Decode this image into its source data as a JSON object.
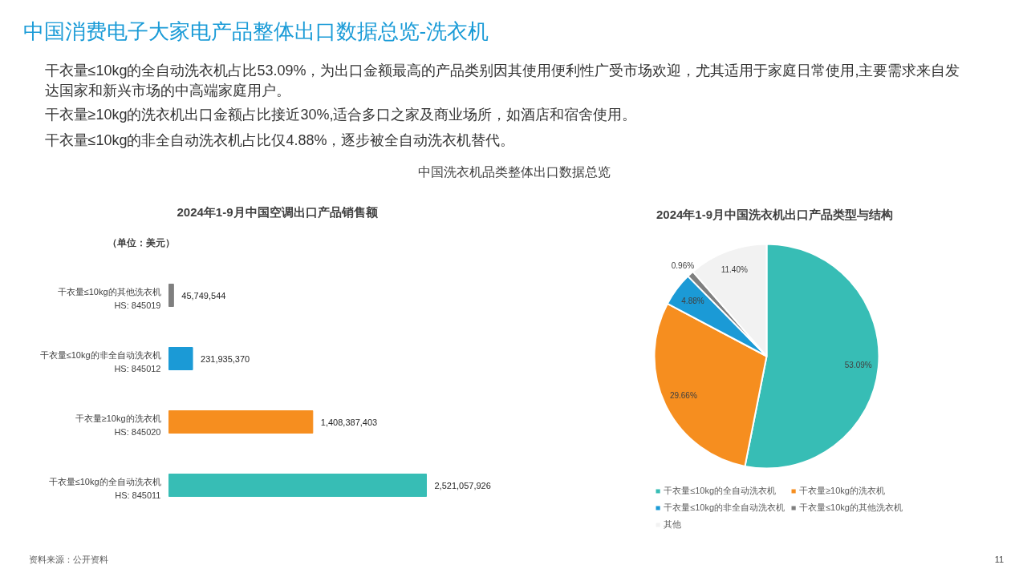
{
  "chart_data": [
    {
      "type": "other",
      "title": "中国消费电子大家电产品整体出口数据总览-洗衣机",
      "subtitle": "中国洗衣机品类整体出口数据总览",
      "annotations": [
        "干衣量≤10kg的全自动洗衣机占比53.09%，为出口金额最高的产品类别因其使用便利性广受市场欢迎，尤其适用于家庭日常使用,主要需求来自发达国家和新兴市场的中高端家庭用户。",
        "干衣量≥10kg的洗衣机出口金额占比接近30%,适合多口之家及商业场所，如酒店和宿舍使用。",
        "干衣量≤10kg的非全自动洗衣机占比仅4.88%，逐步被全自动洗衣机替代。"
      ]
    },
    {
      "type": "bar",
      "orientation": "horizontal",
      "title": "2024年1-9月中国空调出口产品销售额",
      "categories": [
        "干衣量≤10kg的其他洗衣机\nHS: 845019",
        "干衣量≤10kg的非全自动洗衣机\nHS: 845012",
        "干衣量≥10kg的洗衣机\nHS: 845020",
        "干衣量≤10kg的全自动洗衣机\nHS: 845011"
      ],
      "values": [
        45749544,
        231935370,
        1408387403,
        2521057926
      ],
      "colors": [
        "#7f7f7f",
        "#1b9ad6",
        "#f68e1f",
        "#37bdb5"
      ],
      "value_labels": [
        "45,749,544",
        "231,935,370",
        "1,408,387,403",
        "2,521,057,926"
      ],
      "annotations": [
        "（单位：美元）",
        "资料来源：公开资料"
      ]
    },
    {
      "type": "pie",
      "title": "2024年1-9月中国洗衣机出口产品类型与结构",
      "categories": [
        "干衣量≤10kg的全自动洗衣机",
        "干衣量≥10kg的洗衣机",
        "干衣量≤10kg的非全自动洗衣机",
        "干衣量≤10kg的其他洗衣机",
        "其他"
      ],
      "values": [
        53.09,
        29.66,
        4.88,
        0.96,
        11.4
      ],
      "colors": [
        "#37bdb5",
        "#f68e1f",
        "#1b9ad6",
        "#7f7f7f",
        "#f2f2f2"
      ],
      "value_labels": [
        "53.09%",
        "29.66%",
        "4.88%",
        "0.96%",
        "11.40%"
      ],
      "legend": "bottom",
      "annotations": [
        "11"
      ]
    }
  ]
}
